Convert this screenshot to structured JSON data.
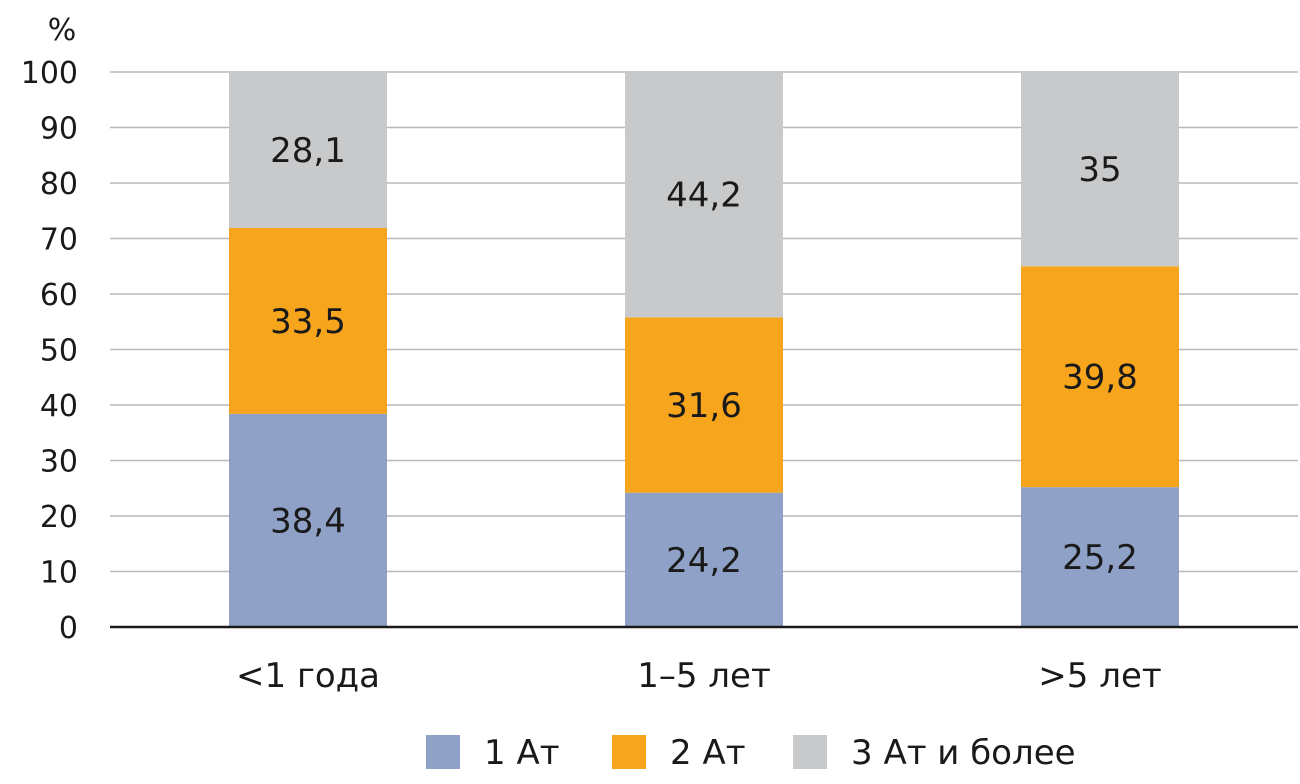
{
  "chart_data": {
    "type": "bar",
    "stacked": true,
    "ylabel": "%",
    "ylim": [
      0,
      100
    ],
    "yticks": [
      0,
      10,
      20,
      30,
      40,
      50,
      60,
      70,
      80,
      90,
      100
    ],
    "grid": true,
    "categories": [
      "<1 года",
      "1–5 лет",
      ">5 лет"
    ],
    "series": [
      {
        "name": "1 Ат",
        "values": [
          38.4,
          24.2,
          25.2
        ],
        "labels": [
          "38,4",
          "24,2",
          "25,2"
        ],
        "color": "#8fa1c7"
      },
      {
        "name": "2 Ат",
        "values": [
          33.5,
          31.6,
          39.8
        ],
        "labels": [
          "33,5",
          "31,6",
          "39,8"
        ],
        "color": "#f6a51c"
      },
      {
        "name": "3 Ат и более",
        "values": [
          28.1,
          44.2,
          35
        ],
        "labels": [
          "28,1",
          "44,2",
          "35"
        ],
        "color": "#c8c9cb"
      }
    ],
    "legend_position": "bottom",
    "gridline_color": "#b9b9b9",
    "axis_color": "#1a1a1a"
  }
}
